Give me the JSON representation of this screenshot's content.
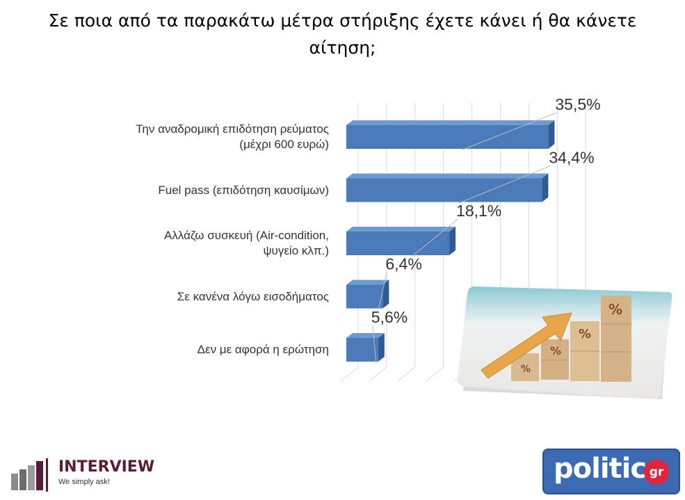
{
  "title": "Σε ποια από τα παρακάτω μέτρα στήριξης έχετε κάνει ή θα κάνετε αίτηση;",
  "chart_data": {
    "type": "bar",
    "orientation": "horizontal",
    "categories": [
      "Την αναδρομική επιδότηση ρεύματος (μέχρι 600 ευρώ)",
      "Fuel pass (επιδότηση καυσίμων)",
      "Αλλάζω συσκευή (Air-condition, ψυγείο κλπ.)",
      "Σε κανένα λόγω εισοδήματος",
      "Δεν με αφορά η ερώτηση"
    ],
    "category_lines": [
      [
        "Την αναδρομική επιδότηση ρεύματος",
        "(μέχρι 600 ευρώ)"
      ],
      [
        "Fuel pass (επιδότηση καυσίμων)"
      ],
      [
        "Αλλάζω συσκευή (Air-condition,",
        "ψυγείο κλπ.)"
      ],
      [
        "Σε κανένα λόγω εισοδήματος"
      ],
      [
        "Δεν με αφορά η ερώτηση"
      ]
    ],
    "values": [
      35.5,
      34.4,
      18.1,
      6.4,
      5.6
    ],
    "value_labels": [
      "35,5%",
      "34,4%",
      "18,1%",
      "6,4%",
      "5,6%"
    ],
    "xlim": [
      0,
      40
    ],
    "grid": true,
    "bar_color": "#4a7ab8"
  },
  "logos": {
    "interview_name": "INTERVIEW",
    "interview_tagline": "We simply ask!",
    "politic_name": "politic",
    "politic_suffix": "gr"
  },
  "colors": {
    "interview_brand": "#5a1a3a",
    "politic_brand": "#3b6ab2",
    "politic_badge": "#e2233a"
  }
}
